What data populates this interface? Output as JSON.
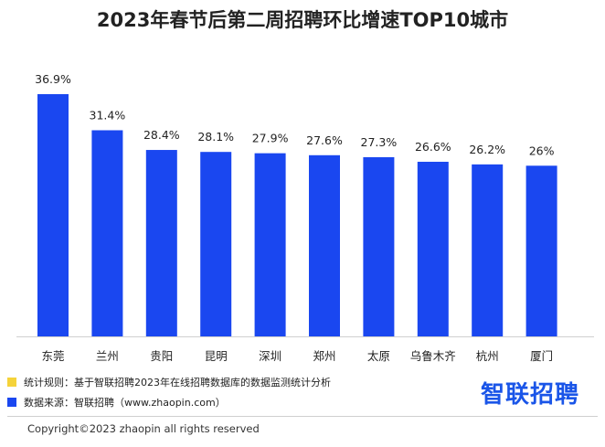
{
  "chart_data": {
    "type": "bar",
    "title": "2023年春节后第二周招聘环比增速TOP10城市",
    "categories": [
      "东莞",
      "兰州",
      "贵阳",
      "昆明",
      "深圳",
      "郑州",
      "太原",
      "乌鲁木齐",
      "杭州",
      "厦门"
    ],
    "values": [
      36.9,
      31.4,
      28.4,
      28.1,
      27.9,
      27.6,
      27.3,
      26.6,
      26.2,
      26
    ],
    "value_labels": [
      "36.9%",
      "31.4%",
      "28.4%",
      "28.1%",
      "27.9%",
      "27.6%",
      "27.3%",
      "26.6%",
      "26.2%",
      "26%"
    ],
    "xlabel": "",
    "ylabel": "",
    "ylim": [
      0,
      40
    ],
    "grid": false,
    "bar_color": "#1a47f0"
  },
  "legend": [
    {
      "text": "统计规则：基于智联招聘2023年在线招聘数据库的数据监测统计分析",
      "color": "#f5d33a"
    },
    {
      "text": "数据来源：智联招聘（www.zhaopin.com）",
      "color": "#1a47f0"
    }
  ],
  "logo_text": "智联招聘",
  "copyright": "Copyright©2023 zhaopin all rights reserved"
}
